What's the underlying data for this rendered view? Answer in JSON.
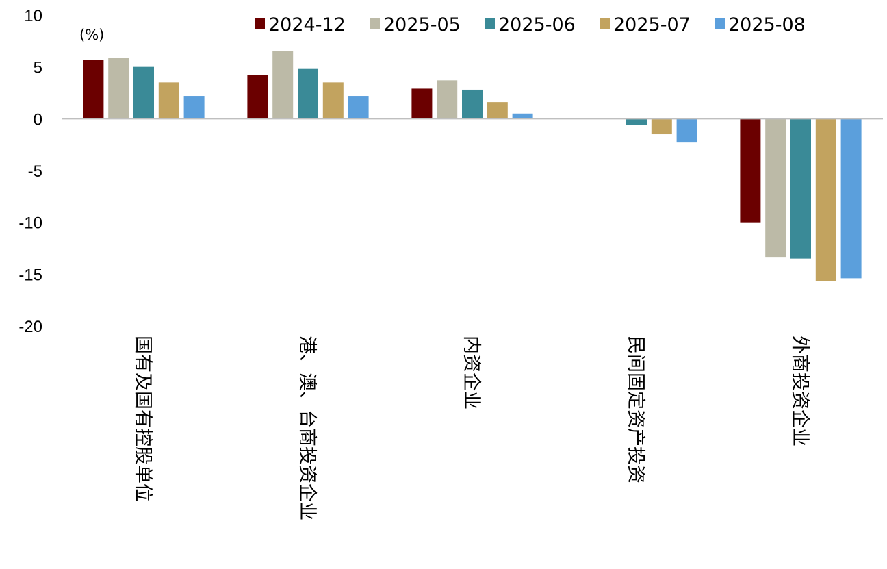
{
  "chart_data": {
    "type": "bar",
    "unit_label": "(%)",
    "categories": [
      "国有及国有控股单位",
      "港、澳、台商投资企业",
      "内资企业",
      "民间固定资产投资",
      "外商投资企业"
    ],
    "series": [
      {
        "name": "2024-12",
        "color": "#6B0000",
        "values": [
          5.7,
          4.2,
          2.9,
          null,
          -10.0
        ]
      },
      {
        "name": "2025-05",
        "color": "#BCBAA7",
        "values": [
          5.9,
          6.5,
          3.7,
          null,
          -13.4
        ]
      },
      {
        "name": "2025-06",
        "color": "#3A8A97",
        "values": [
          5.0,
          4.8,
          2.8,
          -0.6,
          -13.5
        ]
      },
      {
        "name": "2025-07",
        "color": "#C2A35F",
        "values": [
          3.5,
          3.5,
          1.6,
          -1.5,
          -15.7
        ]
      },
      {
        "name": "2025-08",
        "color": "#5B9FDC",
        "values": [
          2.2,
          2.2,
          0.5,
          -2.3,
          -15.4
        ]
      }
    ],
    "ylim": [
      -20,
      10
    ],
    "yticks": [
      "10",
      "5",
      "0",
      "-5",
      "-10",
      "-15",
      "-20"
    ],
    "grid": false,
    "legend_position": "top"
  }
}
